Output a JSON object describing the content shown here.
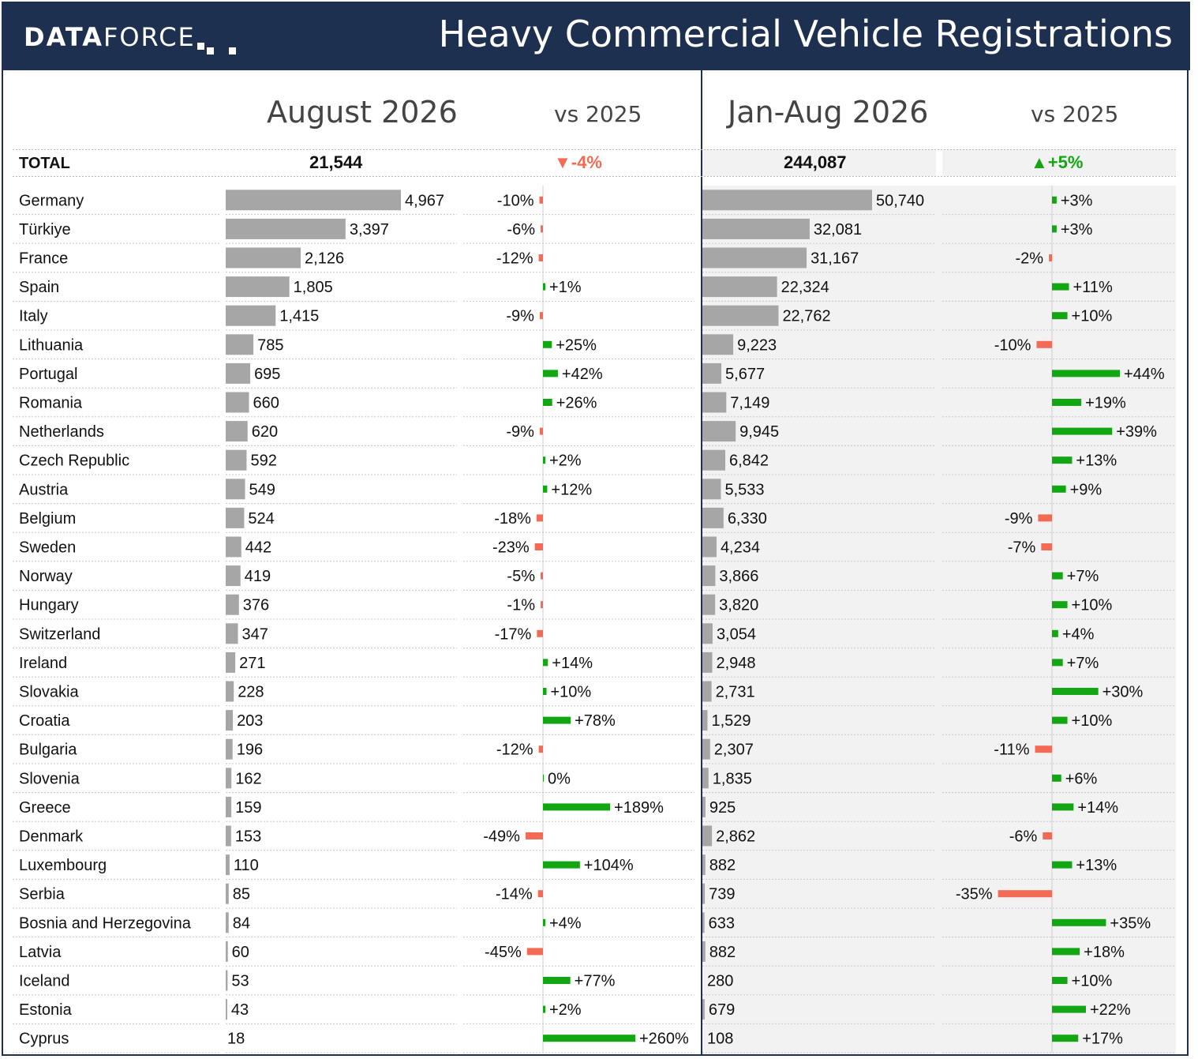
{
  "header": {
    "logo_bold": "DATA",
    "logo_light": "FORCE",
    "title": "Heavy Commercial Vehicle Registrations"
  },
  "columns": {
    "month": "August 2026",
    "month_vs": "vs 2025",
    "ytd": "Jan-Aug 2026",
    "ytd_vs": "vs 2025"
  },
  "colors": {
    "navy": "#1e3050",
    "bar_grey": "#a6a6a6",
    "positive": "#12a612",
    "negative": "#f36a55"
  },
  "chart_data": {
    "type": "table",
    "total": {
      "label": "TOTAL",
      "month": "21,544",
      "month_vs": "-4%",
      "ytd": "244,087",
      "ytd_vs": "+5%"
    },
    "rows": [
      {
        "country": "Germany",
        "month": 4967,
        "month_vs": -10,
        "ytd": 50740,
        "ytd_vs": 3
      },
      {
        "country": "Türkiye",
        "month": 3397,
        "month_vs": -6,
        "ytd": 32081,
        "ytd_vs": 3
      },
      {
        "country": "France",
        "month": 2126,
        "month_vs": -12,
        "ytd": 31167,
        "ytd_vs": -2
      },
      {
        "country": "Spain",
        "month": 1805,
        "month_vs": 1,
        "ytd": 22324,
        "ytd_vs": 11
      },
      {
        "country": "Italy",
        "month": 1415,
        "month_vs": -9,
        "ytd": 22762,
        "ytd_vs": 10
      },
      {
        "country": "Lithuania",
        "month": 785,
        "month_vs": 25,
        "ytd": 9223,
        "ytd_vs": -10
      },
      {
        "country": "Portugal",
        "month": 695,
        "month_vs": 42,
        "ytd": 5677,
        "ytd_vs": 44
      },
      {
        "country": "Romania",
        "month": 660,
        "month_vs": 26,
        "ytd": 7149,
        "ytd_vs": 19
      },
      {
        "country": "Netherlands",
        "month": 620,
        "month_vs": -9,
        "ytd": 9945,
        "ytd_vs": 39
      },
      {
        "country": "Czech Republic",
        "month": 592,
        "month_vs": 2,
        "ytd": 6842,
        "ytd_vs": 13
      },
      {
        "country": "Austria",
        "month": 549,
        "month_vs": 12,
        "ytd": 5533,
        "ytd_vs": 9
      },
      {
        "country": "Belgium",
        "month": 524,
        "month_vs": -18,
        "ytd": 6330,
        "ytd_vs": -9
      },
      {
        "country": "Sweden",
        "month": 442,
        "month_vs": -23,
        "ytd": 4234,
        "ytd_vs": -7
      },
      {
        "country": "Norway",
        "month": 419,
        "month_vs": -5,
        "ytd": 3866,
        "ytd_vs": 7
      },
      {
        "country": "Hungary",
        "month": 376,
        "month_vs": -1,
        "ytd": 3820,
        "ytd_vs": 10
      },
      {
        "country": "Switzerland",
        "month": 347,
        "month_vs": -17,
        "ytd": 3054,
        "ytd_vs": 4
      },
      {
        "country": "Ireland",
        "month": 271,
        "month_vs": 14,
        "ytd": 2948,
        "ytd_vs": 7
      },
      {
        "country": "Slovakia",
        "month": 228,
        "month_vs": 10,
        "ytd": 2731,
        "ytd_vs": 30
      },
      {
        "country": "Croatia",
        "month": 203,
        "month_vs": 78,
        "ytd": 1529,
        "ytd_vs": 10
      },
      {
        "country": "Bulgaria",
        "month": 196,
        "month_vs": -12,
        "ytd": 2307,
        "ytd_vs": -11
      },
      {
        "country": "Slovenia",
        "month": 162,
        "month_vs": 0,
        "ytd": 1835,
        "ytd_vs": 6
      },
      {
        "country": "Greece",
        "month": 159,
        "month_vs": 189,
        "ytd": 925,
        "ytd_vs": 14
      },
      {
        "country": "Denmark",
        "month": 153,
        "month_vs": -49,
        "ytd": 2862,
        "ytd_vs": -6
      },
      {
        "country": "Luxembourg",
        "month": 110,
        "month_vs": 104,
        "ytd": 882,
        "ytd_vs": 13
      },
      {
        "country": "Serbia",
        "month": 85,
        "month_vs": -14,
        "ytd": 739,
        "ytd_vs": -35
      },
      {
        "country": "Bosnia and Herzegovina",
        "month": 84,
        "month_vs": 4,
        "ytd": 633,
        "ytd_vs": 35
      },
      {
        "country": "Latvia",
        "month": 60,
        "month_vs": -45,
        "ytd": 882,
        "ytd_vs": 18
      },
      {
        "country": "Iceland",
        "month": 53,
        "month_vs": 77,
        "ytd": 280,
        "ytd_vs": 10
      },
      {
        "country": "Estonia",
        "month": 43,
        "month_vs": 2,
        "ytd": 679,
        "ytd_vs": 22
      },
      {
        "country": "Cyprus",
        "month": 18,
        "month_vs": 260,
        "ytd": 108,
        "ytd_vs": 17
      }
    ]
  }
}
